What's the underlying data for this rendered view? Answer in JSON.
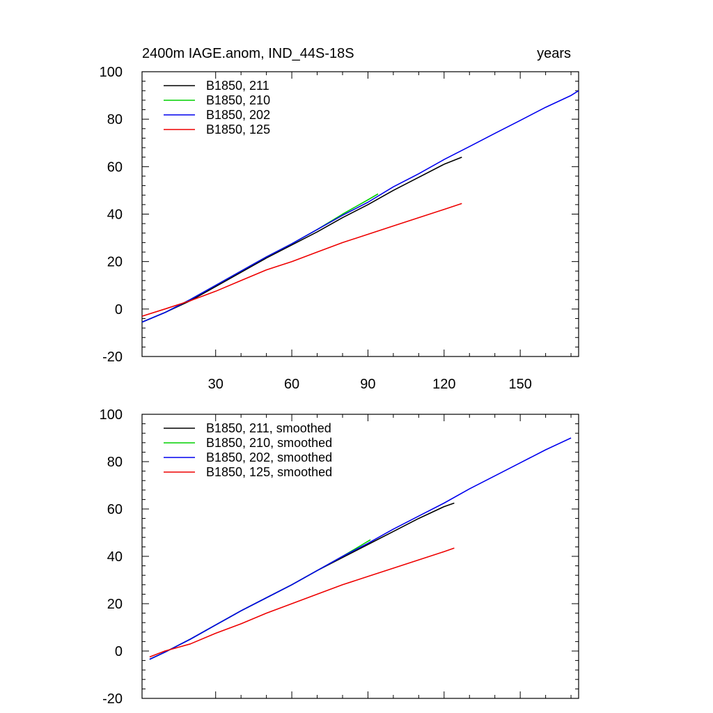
{
  "chart_data": [
    {
      "type": "line",
      "title": "2400m IAGE.anom, IND_44S-18S",
      "title_right": "years",
      "xlabel": "",
      "ylabel": "",
      "xlim": [
        1,
        173
      ],
      "ylim": [
        -20,
        100
      ],
      "xticks": [
        30,
        60,
        90,
        120,
        150
      ],
      "yticks": [
        -20,
        0,
        20,
        40,
        60,
        80,
        100
      ],
      "show_xtick_labels": true,
      "legend_position": "top-left",
      "grid": false,
      "series": [
        {
          "name": "B1850, 211",
          "color": "#000000",
          "x": [
            1,
            10,
            20,
            30,
            40,
            50,
            60,
            70,
            80,
            90,
            100,
            110,
            120,
            127
          ],
          "y": [
            -5.5,
            -1.5,
            3.5,
            9.5,
            15.5,
            21.5,
            27,
            32.5,
            38.5,
            44,
            50,
            55.5,
            61,
            64
          ]
        },
        {
          "name": "B1850, 210",
          "color": "#00d000",
          "x": [
            1,
            10,
            20,
            30,
            40,
            50,
            60,
            70,
            80,
            90,
            94
          ],
          "y": [
            -5.5,
            -1.5,
            4,
            10,
            16,
            22,
            27.5,
            33.5,
            40,
            46,
            48.5
          ]
        },
        {
          "name": "B1850, 202",
          "color": "#0000ee",
          "x": [
            1,
            10,
            20,
            30,
            40,
            50,
            60,
            70,
            80,
            90,
            100,
            110,
            120,
            130,
            140,
            150,
            160,
            170,
            173
          ],
          "y": [
            -5.5,
            -1.5,
            4,
            10,
            16,
            22,
            27.5,
            33.5,
            39.5,
            45,
            51.5,
            57,
            63,
            68.5,
            74,
            79.5,
            85,
            90,
            92
          ]
        },
        {
          "name": "B1850, 125",
          "color": "#ee0000",
          "x": [
            1,
            10,
            20,
            30,
            40,
            50,
            60,
            70,
            80,
            90,
            100,
            110,
            120,
            127
          ],
          "y": [
            -3,
            0,
            3.5,
            7.5,
            12,
            16.5,
            20,
            24,
            28,
            31.5,
            35,
            38.5,
            42,
            44.5
          ]
        }
      ]
    },
    {
      "type": "line",
      "title": "",
      "xlabel": "",
      "ylabel": "",
      "xlim": [
        1,
        173
      ],
      "ylim": [
        -20,
        100
      ],
      "xticks": [
        30,
        60,
        90,
        120,
        150
      ],
      "yticks": [
        -20,
        0,
        20,
        40,
        60,
        80,
        100
      ],
      "show_xtick_labels": false,
      "legend_position": "top-left",
      "grid": false,
      "series": [
        {
          "name": "B1850, 211, smoothed",
          "color": "#000000",
          "x": [
            4,
            10,
            20,
            30,
            40,
            50,
            60,
            70,
            80,
            90,
            100,
            110,
            120,
            124
          ],
          "y": [
            -3.5,
            -0.5,
            5,
            11,
            17,
            22.5,
            28,
            34,
            39.5,
            45,
            50.5,
            56,
            61,
            62.5
          ]
        },
        {
          "name": "B1850, 210, smoothed",
          "color": "#00d000",
          "x": [
            4,
            10,
            20,
            30,
            40,
            50,
            60,
            70,
            80,
            91
          ],
          "y": [
            -3.5,
            -0.5,
            5,
            11,
            17,
            22.5,
            28,
            34,
            40,
            47
          ]
        },
        {
          "name": "B1850, 202, smoothed",
          "color": "#0000ee",
          "x": [
            4,
            10,
            20,
            30,
            40,
            50,
            60,
            70,
            80,
            90,
            100,
            110,
            120,
            130,
            140,
            150,
            160,
            170
          ],
          "y": [
            -3.5,
            -0.5,
            5,
            11,
            17,
            22.5,
            28,
            34,
            40,
            45.5,
            51.5,
            57,
            62.5,
            68.5,
            74,
            79.5,
            85,
            90
          ]
        },
        {
          "name": "B1850, 125, smoothed",
          "color": "#ee0000",
          "x": [
            4,
            10,
            20,
            30,
            40,
            50,
            60,
            70,
            80,
            90,
            100,
            110,
            120,
            124
          ],
          "y": [
            -2.5,
            0,
            3,
            7.5,
            11.5,
            16,
            20,
            24,
            28,
            31.5,
            35,
            38.5,
            42,
            43.5
          ]
        }
      ]
    }
  ]
}
